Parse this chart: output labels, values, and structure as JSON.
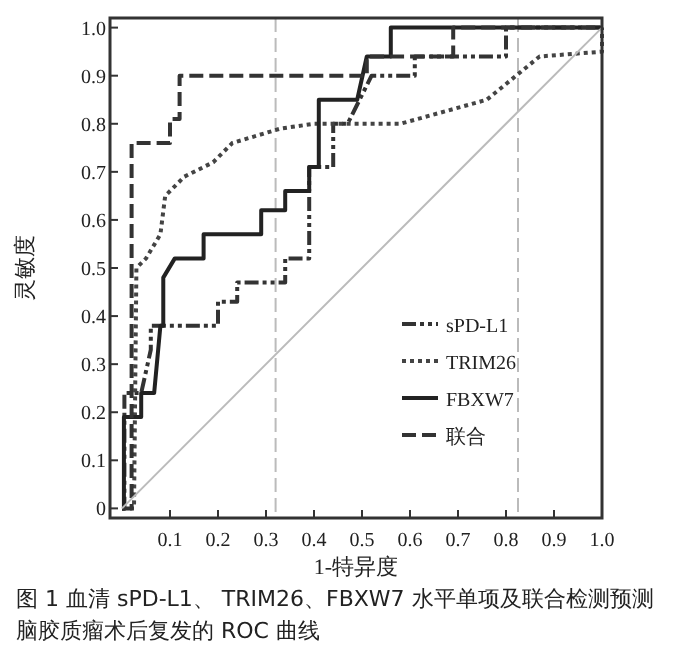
{
  "chart_data": {
    "type": "line",
    "title": "图 1  血清 sPD-L1、 TRIM26、FBXW7 水平单项及联合检测预测脑胶质瘤术后复发的 ROC 曲线",
    "xlabel": "1-特异度",
    "ylabel": "灵敏度",
    "xlim": [
      -0.025,
      1.0
    ],
    "ylim": [
      -0.02,
      1.02
    ],
    "xticks": [
      0.1,
      0.2,
      0.3,
      0.4,
      0.5,
      0.6,
      0.7,
      0.8,
      0.9,
      {
        "value": 1,
        "label": "1.0"
      }
    ],
    "yticks": [
      0,
      0.1,
      0.2,
      0.3,
      0.4,
      0.5,
      0.6,
      0.7,
      0.8,
      0.9,
      {
        "value": 1,
        "label": "1.0"
      }
    ],
    "grid": false,
    "legend": "bottom right",
    "marker": "none",
    "ref_lines": [
      {
        "axis": "x",
        "value": 0.32,
        "color": "#bbbbbb",
        "line_style": "dashed"
      },
      {
        "axis": "x",
        "value": 0.825,
        "color": "#bbbbbb",
        "line_style": "dashed"
      }
    ],
    "series": [
      {
        "name": "sPD-L1",
        "color": "#333333",
        "line_style": "dashdotdot",
        "x": [
          0,
          0.005,
          0.005,
          0.04,
          0.06,
          0.06,
          0.2,
          0.2,
          0.24,
          0.24,
          0.34,
          0.34,
          0.39,
          0.39,
          0.44,
          0.44,
          0.47,
          0.52,
          0.61,
          0.61,
          0.8,
          0.8,
          1
        ],
        "values": [
          0,
          0,
          0.24,
          0.24,
          0.33,
          0.38,
          0.38,
          0.43,
          0.43,
          0.47,
          0.47,
          0.52,
          0.52,
          0.71,
          0.71,
          0.8,
          0.8,
          0.9,
          0.9,
          0.94,
          0.94,
          1,
          1
        ]
      },
      {
        "name": "TRIM26",
        "color": "#444444",
        "line_style": "dotted",
        "x": [
          0,
          0.025,
          0.03,
          0.05,
          0.08,
          0.09,
          0.13,
          0.19,
          0.23,
          0.33,
          0.4,
          0.58,
          0.76,
          0.87,
          1,
          1
        ],
        "values": [
          0,
          0,
          0.5,
          0.52,
          0.57,
          0.65,
          0.69,
          0.72,
          0.76,
          0.79,
          0.8,
          0.8,
          0.85,
          0.94,
          0.95,
          1
        ]
      },
      {
        "name": "FBXW7",
        "color": "#222222",
        "line_style": "solid",
        "x": [
          0,
          0.004,
          0.004,
          0.04,
          0.04,
          0.067,
          0.08,
          0.086,
          0.086,
          0.11,
          0.17,
          0.17,
          0.29,
          0.29,
          0.34,
          0.34,
          0.39,
          0.39,
          0.41,
          0.41,
          0.49,
          0.51,
          0.56,
          0.56,
          1
        ],
        "values": [
          0,
          0,
          0.19,
          0.19,
          0.24,
          0.24,
          0.38,
          0.38,
          0.48,
          0.52,
          0.52,
          0.57,
          0.57,
          0.62,
          0.62,
          0.66,
          0.66,
          0.71,
          0.71,
          0.85,
          0.85,
          0.94,
          0.94,
          1,
          1
        ]
      },
      {
        "name": "联合",
        "color": "#333333",
        "line_style": "dashed",
        "x": [
          0,
          0.02,
          0.02,
          0.1,
          0.1,
          0.12,
          0.12,
          0.51,
          0.51,
          0.69,
          0.69,
          1
        ],
        "values": [
          0,
          0,
          0.76,
          0.76,
          0.81,
          0.81,
          0.9,
          0.9,
          0.94,
          0.94,
          1,
          1
        ]
      },
      {
        "color": "#bbbbbb",
        "line_style": "solid",
        "x": [
          0,
          1
        ],
        "values": [
          0,
          1
        ]
      }
    ]
  }
}
